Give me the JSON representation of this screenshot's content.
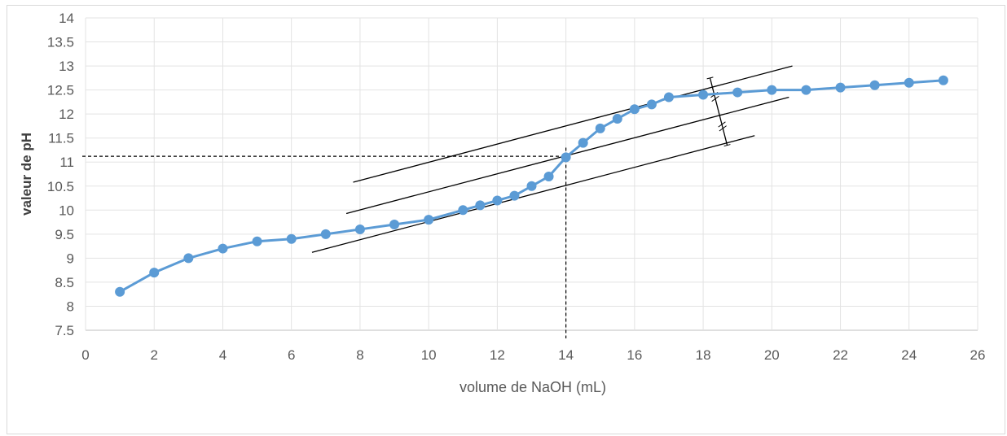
{
  "chart_data": {
    "type": "scatter",
    "title": "",
    "xlabel": "volume de NaOH (mL)",
    "ylabel": "valeur de pH",
    "xlim": [
      0,
      26
    ],
    "ylim": [
      7.5,
      14
    ],
    "x_ticks": [
      "0",
      "2",
      "4",
      "6",
      "8",
      "10",
      "12",
      "14",
      "16",
      "18",
      "20",
      "22",
      "24",
      "26"
    ],
    "y_ticks": [
      "7.5",
      "8",
      "8.5",
      "9",
      "9.5",
      "10",
      "10.5",
      "11",
      "11.5",
      "12",
      "12.5",
      "13",
      "13.5",
      "14"
    ],
    "grid": true,
    "series": [
      {
        "color": "#5b9bd5",
        "x": [
          1,
          2,
          3,
          4,
          5,
          6,
          7,
          8,
          9,
          10,
          11,
          11.5,
          12,
          12.5,
          13,
          13.5,
          14,
          14.5,
          15,
          15.5,
          16,
          16.5,
          17,
          18,
          19,
          20,
          21,
          22,
          23,
          24,
          25
        ],
        "y": [
          8.3,
          8.7,
          9.0,
          9.2,
          9.35,
          9.4,
          9.5,
          9.6,
          9.7,
          9.8,
          10.0,
          10.1,
          10.2,
          10.3,
          10.5,
          10.7,
          11.1,
          11.4,
          11.7,
          11.9,
          12.1,
          12.2,
          12.35,
          12.4,
          12.45,
          12.5,
          12.5,
          12.55,
          12.6,
          12.65,
          12.7
        ]
      }
    ],
    "tangent_lines": [
      {
        "from": [
          7.8,
          10.58
        ],
        "to": [
          20.6,
          13.0
        ]
      },
      {
        "from": [
          7.6,
          9.93
        ],
        "to": [
          20.5,
          12.35
        ]
      },
      {
        "from": [
          6.6,
          9.12
        ],
        "to": [
          19.5,
          11.55
        ]
      }
    ],
    "equivalence_point": {
      "x": 14,
      "y": 11.12
    },
    "perpendicular": {
      "from": [
        18.2,
        12.75
      ],
      "to": [
        18.7,
        11.35
      ]
    }
  }
}
